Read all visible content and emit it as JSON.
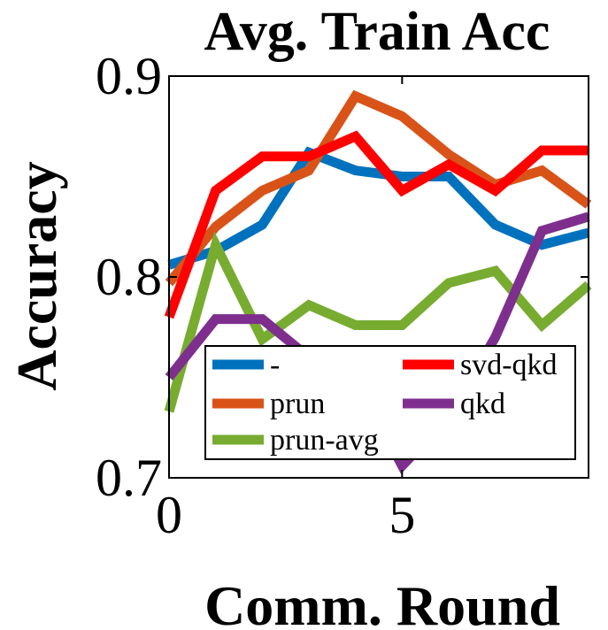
{
  "chart_data": {
    "type": "line",
    "title": "Avg. Train Acc",
    "xlabel": "Comm. Round",
    "ylabel": "Accuracy",
    "xlim": [
      0,
      9
    ],
    "ylim": [
      0.7,
      0.9
    ],
    "xticks": [
      0,
      5
    ],
    "yticks": [
      0.7,
      0.8,
      0.9
    ],
    "xtick_labels": [
      "0",
      "5"
    ],
    "ytick_labels": [
      "0.7",
      "0.8",
      "0.9"
    ],
    "grid": false,
    "legend_position": "bottom-center",
    "x": [
      0,
      1,
      2,
      3,
      4,
      5,
      6,
      7,
      8,
      9
    ],
    "series": [
      {
        "name": "-",
        "color": "#0072BD",
        "values": [
          0.806,
          0.813,
          0.826,
          0.862,
          0.853,
          0.85,
          0.85,
          0.826,
          0.816,
          0.822
        ]
      },
      {
        "name": "prun",
        "color": "#D95319",
        "values": [
          0.797,
          0.825,
          0.843,
          0.853,
          0.89,
          0.88,
          0.861,
          0.846,
          0.853,
          0.836
        ]
      },
      {
        "name": "prun-avg",
        "color": "#77AC30",
        "values": [
          0.733,
          0.816,
          0.769,
          0.786,
          0.776,
          0.776,
          0.797,
          0.803,
          0.776,
          0.796
        ]
      },
      {
        "name": "svd-qkd",
        "color": "#FF0000",
        "values": [
          0.78,
          0.843,
          0.86,
          0.86,
          0.87,
          0.843,
          0.856,
          0.843,
          0.863,
          0.863
        ]
      },
      {
        "name": "qkd",
        "color": "#7E2F8E",
        "values": [
          0.75,
          0.779,
          0.779,
          0.76,
          0.75,
          0.706,
          0.73,
          0.77,
          0.823,
          0.83
        ]
      }
    ]
  }
}
